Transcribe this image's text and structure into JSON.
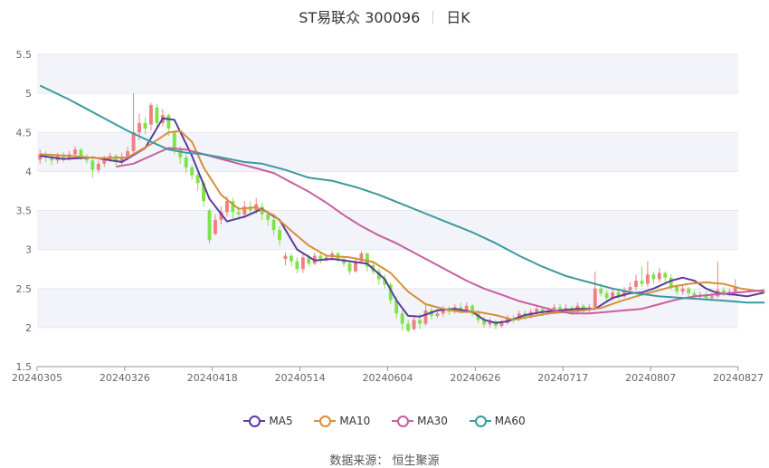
{
  "header": {
    "title": "ST易联众 300096",
    "period": "日K"
  },
  "source": "数据来源： 恒生聚源",
  "chart_data": {
    "type": "candlestick",
    "ylim": [
      1.5,
      5.5
    ],
    "yticks": [
      "1.5",
      "2",
      "2.5",
      "3",
      "3.5",
      "4",
      "4.5",
      "5",
      "5.5"
    ],
    "xticks": [
      "20240305",
      "20240326",
      "20240418",
      "20240514",
      "20240604",
      "20240626",
      "20240717",
      "20240807",
      "20240827"
    ],
    "up_color": "#f08080",
    "down_color": "#7ee34a",
    "candles": [
      [
        4.15,
        4.22,
        4.28,
        4.1
      ],
      [
        4.22,
        4.18,
        4.26,
        4.12
      ],
      [
        4.18,
        4.14,
        4.22,
        4.08
      ],
      [
        4.14,
        4.2,
        4.24,
        4.1
      ],
      [
        4.2,
        4.16,
        4.25,
        4.12
      ],
      [
        4.16,
        4.22,
        4.26,
        4.14
      ],
      [
        4.22,
        4.28,
        4.32,
        4.18
      ],
      [
        4.28,
        4.18,
        4.3,
        4.15
      ],
      [
        4.18,
        4.14,
        4.22,
        4.1
      ],
      [
        4.14,
        4.02,
        4.16,
        3.92
      ],
      [
        4.02,
        4.1,
        4.14,
        3.98
      ],
      [
        4.1,
        4.16,
        4.2,
        4.06
      ],
      [
        4.16,
        4.2,
        4.24,
        4.12
      ],
      [
        4.2,
        4.12,
        4.22,
        4.08
      ],
      [
        4.12,
        4.18,
        4.24,
        4.08
      ],
      [
        4.18,
        4.26,
        4.32,
        4.14
      ],
      [
        4.26,
        4.5,
        5.0,
        4.22
      ],
      [
        4.5,
        4.62,
        4.74,
        4.4
      ],
      [
        4.62,
        4.55,
        4.7,
        4.48
      ],
      [
        4.6,
        4.85,
        4.88,
        4.52
      ],
      [
        4.82,
        4.62,
        4.86,
        4.55
      ],
      [
        4.62,
        4.72,
        4.8,
        4.58
      ],
      [
        4.72,
        4.55,
        4.74,
        4.45
      ],
      [
        4.5,
        4.28,
        4.52,
        4.22
      ],
      [
        4.28,
        4.18,
        4.32,
        4.1
      ],
      [
        4.18,
        4.05,
        4.22,
        3.98
      ],
      [
        4.05,
        3.95,
        4.08,
        3.9
      ],
      [
        3.95,
        3.85,
        3.98,
        3.75
      ],
      [
        3.85,
        3.62,
        3.88,
        3.55
      ],
      [
        3.5,
        3.12,
        3.52,
        3.08
      ],
      [
        3.2,
        3.38,
        3.45,
        3.18
      ],
      [
        3.38,
        3.48,
        3.55,
        3.32
      ],
      [
        3.48,
        3.62,
        3.68,
        3.42
      ],
      [
        3.62,
        3.48,
        3.66,
        3.4
      ],
      [
        3.48,
        3.45,
        3.55,
        3.38
      ],
      [
        3.45,
        3.55,
        3.62,
        3.4
      ],
      [
        3.55,
        3.5,
        3.62,
        3.44
      ],
      [
        3.5,
        3.58,
        3.66,
        3.46
      ],
      [
        3.55,
        3.45,
        3.6,
        3.38
      ],
      [
        3.45,
        3.38,
        3.5,
        3.3
      ],
      [
        3.38,
        3.25,
        3.42,
        3.18
      ],
      [
        3.25,
        3.12,
        3.3,
        3.05
      ],
      [
        2.88,
        2.92,
        2.96,
        2.8
      ],
      [
        2.92,
        2.85,
        2.95,
        2.78
      ],
      [
        2.85,
        2.75,
        2.9,
        2.7
      ],
      [
        2.75,
        2.9,
        2.95,
        2.7
      ],
      [
        2.9,
        2.82,
        2.94,
        2.78
      ],
      [
        2.82,
        2.92,
        2.96,
        2.8
      ],
      [
        2.92,
        2.88,
        2.95,
        2.82
      ],
      [
        2.88,
        2.9,
        2.94,
        2.84
      ],
      [
        2.9,
        2.95,
        2.98,
        2.86
      ],
      [
        2.95,
        2.88,
        2.97,
        2.84
      ],
      [
        2.88,
        2.82,
        2.92,
        2.78
      ],
      [
        2.82,
        2.72,
        2.86,
        2.68
      ],
      [
        2.72,
        2.85,
        2.9,
        2.7
      ],
      [
        2.85,
        2.95,
        2.98,
        2.82
      ],
      [
        2.95,
        2.78,
        2.96,
        2.72
      ],
      [
        2.8,
        2.72,
        2.84,
        2.68
      ],
      [
        2.72,
        2.62,
        2.76,
        2.55
      ],
      [
        2.62,
        2.55,
        2.68,
        2.5
      ],
      [
        2.55,
        2.35,
        2.58,
        2.3
      ],
      [
        2.35,
        2.18,
        2.4,
        2.12
      ],
      [
        2.18,
        2.05,
        2.22,
        1.96
      ],
      [
        2.05,
        1.96,
        2.1,
        1.94
      ],
      [
        1.98,
        2.1,
        2.15,
        1.96
      ],
      [
        2.1,
        2.05,
        2.18,
        1.98
      ],
      [
        2.05,
        2.22,
        2.3,
        2.02
      ],
      [
        2.22,
        2.15,
        2.26,
        2.1
      ],
      [
        2.15,
        2.18,
        2.24,
        2.12
      ],
      [
        2.18,
        2.25,
        2.28,
        2.14
      ],
      [
        2.25,
        2.2,
        2.28,
        2.16
      ],
      [
        2.2,
        2.26,
        2.3,
        2.18
      ],
      [
        2.26,
        2.22,
        2.32,
        2.18
      ],
      [
        2.22,
        2.28,
        2.32,
        2.2
      ],
      [
        2.28,
        2.18,
        2.3,
        2.14
      ],
      [
        2.18,
        2.1,
        2.22,
        2.06
      ],
      [
        2.1,
        2.04,
        2.14,
        2.0
      ],
      [
        2.04,
        2.08,
        2.12,
        2.0
      ],
      [
        2.08,
        2.02,
        2.1,
        1.98
      ],
      [
        2.02,
        2.06,
        2.1,
        2.0
      ],
      [
        2.06,
        2.12,
        2.16,
        2.04
      ],
      [
        2.12,
        2.1,
        2.16,
        2.06
      ],
      [
        2.1,
        2.18,
        2.22,
        2.08
      ],
      [
        2.18,
        2.14,
        2.22,
        2.1
      ],
      [
        2.14,
        2.2,
        2.24,
        2.12
      ],
      [
        2.2,
        2.24,
        2.28,
        2.16
      ],
      [
        2.24,
        2.18,
        2.26,
        2.14
      ],
      [
        2.18,
        2.22,
        2.26,
        2.16
      ],
      [
        2.22,
        2.26,
        2.3,
        2.18
      ],
      [
        2.26,
        2.22,
        2.3,
        2.18
      ],
      [
        2.22,
        2.25,
        2.3,
        2.18
      ],
      [
        2.25,
        2.2,
        2.28,
        2.16
      ],
      [
        2.2,
        2.28,
        2.32,
        2.18
      ],
      [
        2.28,
        2.22,
        2.3,
        2.18
      ],
      [
        2.22,
        2.26,
        2.3,
        2.18
      ],
      [
        2.26,
        2.5,
        2.72,
        2.24
      ],
      [
        2.5,
        2.44,
        2.56,
        2.4
      ],
      [
        2.44,
        2.38,
        2.48,
        2.34
      ],
      [
        2.38,
        2.45,
        2.5,
        2.34
      ],
      [
        2.45,
        2.4,
        2.5,
        2.36
      ],
      [
        2.4,
        2.48,
        2.52,
        2.38
      ],
      [
        2.48,
        2.52,
        2.58,
        2.44
      ],
      [
        2.52,
        2.6,
        2.68,
        2.48
      ],
      [
        2.6,
        2.56,
        2.78,
        2.52
      ],
      [
        2.56,
        2.68,
        2.85,
        2.52
      ],
      [
        2.68,
        2.62,
        2.72,
        2.56
      ],
      [
        2.62,
        2.7,
        2.76,
        2.58
      ],
      [
        2.7,
        2.64,
        2.72,
        2.56
      ],
      [
        2.64,
        2.52,
        2.68,
        2.48
      ],
      [
        2.52,
        2.46,
        2.56,
        2.42
      ],
      [
        2.46,
        2.5,
        2.55,
        2.42
      ],
      [
        2.5,
        2.44,
        2.52,
        2.4
      ],
      [
        2.44,
        2.4,
        2.48,
        2.36
      ],
      [
        2.4,
        2.42,
        2.46,
        2.36
      ],
      [
        2.42,
        2.38,
        2.46,
        2.34
      ],
      [
        2.38,
        2.4,
        2.44,
        2.34
      ],
      [
        2.4,
        2.48,
        2.84,
        2.38
      ],
      [
        2.48,
        2.44,
        2.52,
        2.4
      ],
      [
        2.44,
        2.46,
        2.5,
        2.4
      ],
      [
        2.46,
        2.52,
        2.62,
        2.42
      ]
    ],
    "series": [
      {
        "name": "MA5",
        "color": "#5b3c9e",
        "points": [
          [
            0,
            4.2
          ],
          [
            4,
            4.16
          ],
          [
            9,
            4.18
          ],
          [
            14,
            4.12
          ],
          [
            18,
            4.3
          ],
          [
            21,
            4.68
          ],
          [
            23,
            4.66
          ],
          [
            26,
            4.2
          ],
          [
            29,
            3.65
          ],
          [
            32,
            3.36
          ],
          [
            35,
            3.42
          ],
          [
            38,
            3.52
          ],
          [
            41,
            3.38
          ],
          [
            44,
            3.0
          ],
          [
            47,
            2.86
          ],
          [
            50,
            2.88
          ],
          [
            53,
            2.85
          ],
          [
            56,
            2.82
          ],
          [
            59,
            2.62
          ],
          [
            61,
            2.35
          ],
          [
            63,
            2.15
          ],
          [
            65,
            2.14
          ],
          [
            68,
            2.22
          ],
          [
            71,
            2.24
          ],
          [
            74,
            2.2
          ],
          [
            76,
            2.1
          ],
          [
            78,
            2.06
          ],
          [
            80,
            2.08
          ],
          [
            83,
            2.16
          ],
          [
            86,
            2.2
          ],
          [
            89,
            2.22
          ],
          [
            92,
            2.24
          ],
          [
            95,
            2.24
          ],
          [
            98,
            2.38
          ],
          [
            101,
            2.44
          ],
          [
            103,
            2.45
          ],
          [
            105,
            2.5
          ],
          [
            108,
            2.6
          ],
          [
            110,
            2.64
          ],
          [
            112,
            2.6
          ],
          [
            114,
            2.5
          ],
          [
            116,
            2.44
          ],
          [
            119,
            2.42
          ],
          [
            121,
            2.4
          ],
          [
            124,
            2.45
          ]
        ]
      },
      {
        "name": "MA10",
        "color": "#d98e3c",
        "points": [
          [
            0,
            4.22
          ],
          [
            5,
            4.2
          ],
          [
            10,
            4.17
          ],
          [
            15,
            4.18
          ],
          [
            19,
            4.35
          ],
          [
            22,
            4.5
          ],
          [
            24,
            4.52
          ],
          [
            26,
            4.38
          ],
          [
            28,
            4.05
          ],
          [
            31,
            3.7
          ],
          [
            34,
            3.52
          ],
          [
            37,
            3.54
          ],
          [
            40,
            3.44
          ],
          [
            43,
            3.24
          ],
          [
            46,
            3.05
          ],
          [
            49,
            2.92
          ],
          [
            53,
            2.9
          ],
          [
            57,
            2.84
          ],
          [
            60,
            2.7
          ],
          [
            63,
            2.46
          ],
          [
            66,
            2.3
          ],
          [
            69,
            2.24
          ],
          [
            72,
            2.2
          ],
          [
            75,
            2.2
          ],
          [
            78,
            2.16
          ],
          [
            81,
            2.1
          ],
          [
            84,
            2.14
          ],
          [
            87,
            2.18
          ],
          [
            90,
            2.2
          ],
          [
            93,
            2.22
          ],
          [
            96,
            2.25
          ],
          [
            99,
            2.33
          ],
          [
            102,
            2.4
          ],
          [
            105,
            2.46
          ],
          [
            108,
            2.52
          ],
          [
            111,
            2.56
          ],
          [
            114,
            2.58
          ],
          [
            117,
            2.56
          ],
          [
            120,
            2.5
          ],
          [
            124,
            2.46
          ]
        ]
      },
      {
        "name": "MA30",
        "color": "#c75fa0",
        "points": [
          [
            13,
            4.06
          ],
          [
            16,
            4.1
          ],
          [
            19,
            4.2
          ],
          [
            22,
            4.3
          ],
          [
            25,
            4.28
          ],
          [
            28,
            4.22
          ],
          [
            31,
            4.16
          ],
          [
            34,
            4.1
          ],
          [
            37,
            4.04
          ],
          [
            40,
            3.98
          ],
          [
            43,
            3.86
          ],
          [
            46,
            3.74
          ],
          [
            49,
            3.6
          ],
          [
            52,
            3.44
          ],
          [
            55,
            3.3
          ],
          [
            58,
            3.18
          ],
          [
            61,
            3.08
          ],
          [
            64,
            2.96
          ],
          [
            67,
            2.84
          ],
          [
            70,
            2.72
          ],
          [
            73,
            2.6
          ],
          [
            76,
            2.5
          ],
          [
            79,
            2.42
          ],
          [
            82,
            2.34
          ],
          [
            85,
            2.28
          ],
          [
            88,
            2.22
          ],
          [
            91,
            2.18
          ],
          [
            94,
            2.18
          ],
          [
            97,
            2.2
          ],
          [
            100,
            2.22
          ],
          [
            103,
            2.24
          ],
          [
            106,
            2.3
          ],
          [
            109,
            2.36
          ],
          [
            112,
            2.4
          ],
          [
            115,
            2.42
          ],
          [
            118,
            2.44
          ],
          [
            121,
            2.46
          ],
          [
            124,
            2.48
          ]
        ]
      },
      {
        "name": "MA60",
        "color": "#3a9a9e",
        "points": [
          [
            0,
            5.1
          ],
          [
            5,
            4.92
          ],
          [
            10,
            4.72
          ],
          [
            15,
            4.52
          ],
          [
            19,
            4.38
          ],
          [
            22,
            4.28
          ],
          [
            25,
            4.24
          ],
          [
            28,
            4.22
          ],
          [
            31,
            4.18
          ],
          [
            35,
            4.12
          ],
          [
            38,
            4.1
          ],
          [
            42,
            4.02
          ],
          [
            46,
            3.92
          ],
          [
            50,
            3.88
          ],
          [
            54,
            3.8
          ],
          [
            58,
            3.7
          ],
          [
            62,
            3.58
          ],
          [
            66,
            3.46
          ],
          [
            70,
            3.34
          ],
          [
            74,
            3.22
          ],
          [
            78,
            3.08
          ],
          [
            82,
            2.92
          ],
          [
            86,
            2.78
          ],
          [
            90,
            2.66
          ],
          [
            94,
            2.58
          ],
          [
            98,
            2.5
          ],
          [
            102,
            2.44
          ],
          [
            106,
            2.4
          ],
          [
            110,
            2.38
          ],
          [
            114,
            2.36
          ],
          [
            118,
            2.34
          ],
          [
            121,
            2.32
          ],
          [
            124,
            2.32
          ]
        ]
      }
    ]
  }
}
